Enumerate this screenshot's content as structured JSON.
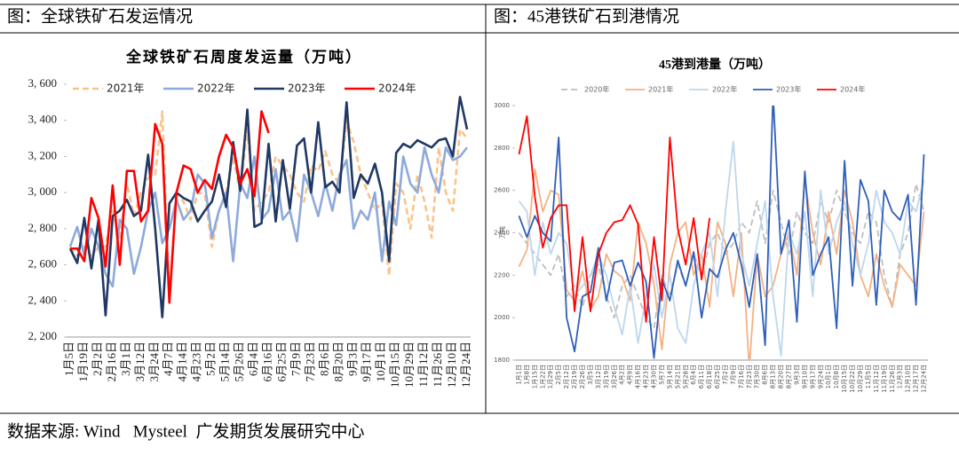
{
  "captions": [
    "图：全球铁矿石发运情况",
    "图：45港铁矿石到港情况"
  ],
  "source": "数据来源: Wind   Mysteel  广发期货发展研究中心",
  "chart_data": [
    {
      "type": "line",
      "title": "全球铁矿石周度发运量（万吨）",
      "categories": [
        "1月5日",
        null,
        "1月19日",
        null,
        "2月2日",
        null,
        "2月16日",
        null,
        "3月1日",
        null,
        "3月12日",
        null,
        "3月24日",
        null,
        "4月7日",
        null,
        "4月14日",
        null,
        "4月23日",
        null,
        "5月2日",
        null,
        "5月14日",
        null,
        "5月26日",
        null,
        "6月4日",
        null,
        "6月16日",
        null,
        "6月25日",
        null,
        "7月9日",
        null,
        "7月23日",
        null,
        "8月6日",
        null,
        "8月20日",
        null,
        "9月3日",
        null,
        "9月17日",
        null,
        "10月1日",
        null,
        "10月15日",
        null,
        "10月29日",
        null,
        "11月12日",
        null,
        "11月26日",
        null,
        "12月10日",
        null,
        "12月24日"
      ],
      "ylim": [
        2200,
        3600
      ],
      "yticks": [
        {
          "value": 2200,
          "label": "2, 200"
        },
        {
          "value": 2400,
          "label": "2, 400"
        },
        {
          "value": 2600,
          "label": "2, 600"
        },
        {
          "value": 2800,
          "label": "2, 800"
        },
        {
          "value": 3000,
          "label": "3, 000"
        },
        {
          "value": 3200,
          "label": "3, 200"
        },
        {
          "value": 3400,
          "label": "3, 400"
        },
        {
          "value": 3600,
          "label": "3, 600"
        }
      ],
      "grid": false,
      "legend": "top-left",
      "series": [
        {
          "name": "2021年",
          "color": "#f9c48c",
          "dashed": true,
          "values": [
            2700,
            2650,
            2700,
            2650,
            2700,
            2700,
            2900,
            2750,
            3050,
            2870,
            3000,
            3080,
            3100,
            3450,
            2400,
            3000,
            2950,
            2850,
            3000,
            2990,
            2700,
            2900,
            3000,
            3200,
            3000,
            3350,
            2900,
            2950,
            3000,
            3200,
            3150,
            3100,
            3000,
            2950,
            3150,
            3120,
            3230,
            3100,
            3050,
            3400,
            3280,
            3100,
            3000,
            2900,
            2950,
            2540,
            3050,
            3000,
            2800,
            3100,
            2950,
            2750,
            3250,
            3000,
            2900,
            3350,
            3300
          ]
        },
        {
          "name": "2022年",
          "color": "#8eaadb",
          "dashed": false,
          "values": [
            2700,
            2810,
            2650,
            2800,
            2700,
            2550,
            2480,
            2850,
            2800,
            2550,
            2700,
            2900,
            3000,
            2720,
            2800,
            2960,
            2850,
            2900,
            3100,
            3050,
            2750,
            2900,
            3000,
            2620,
            3050,
            2970,
            3200,
            2850,
            2900,
            3130,
            2850,
            2900,
            2730,
            3100,
            3000,
            2870,
            3050,
            2900,
            3100,
            3180,
            2800,
            2900,
            2850,
            3000,
            2620,
            2950,
            2820,
            3200,
            3050,
            3000,
            3250,
            3100,
            3000,
            3250,
            3180,
            3200,
            3250
          ]
        },
        {
          "name": "2023年",
          "color": "#1f3864",
          "dashed": false,
          "values": [
            2690,
            2610,
            2860,
            2580,
            2850,
            2320,
            2870,
            2900,
            2960,
            2870,
            2900,
            3210,
            2800,
            2310,
            2940,
            3000,
            2970,
            2950,
            2840,
            2900,
            2950,
            3100,
            2920,
            3280,
            3010,
            3460,
            2810,
            2830,
            3270,
            2840,
            3180,
            2910,
            3260,
            3300,
            3000,
            3390,
            3030,
            3060,
            3000,
            3500,
            2970,
            3100,
            3050,
            3160,
            3000,
            2620,
            3220,
            3270,
            3250,
            3290,
            3270,
            3250,
            3290,
            3300,
            3200,
            3530,
            3350
          ]
        },
        {
          "name": "2024年",
          "color": "#ff0000",
          "dashed": false,
          "values": [
            2690,
            2690,
            2620,
            2970,
            2860,
            2590,
            3040,
            2600,
            3120,
            3120,
            2840,
            2900,
            3380,
            3270,
            2390,
            3000,
            3150,
            3130,
            3000,
            3070,
            3020,
            3200,
            3320,
            3250,
            3050,
            3130,
            2980,
            3450,
            3330,
            null,
            null,
            null,
            null,
            null,
            null,
            null,
            null,
            null,
            null,
            null,
            null,
            null,
            null,
            null,
            null,
            null,
            null,
            null,
            null,
            null,
            null,
            null,
            null,
            null,
            null,
            null,
            null
          ]
        }
      ]
    },
    {
      "type": "line",
      "title": "45港到港量（万吨）",
      "y_label": "万吨",
      "categories": [
        "1月1日",
        "1月8日",
        "1月15日",
        "1月22日",
        "1月29日",
        "2月5日",
        "2月12日",
        "2月19日",
        "2月26日",
        "3月5日",
        "3月12日",
        "3月19日",
        "3月26日",
        "4月2日",
        "4月9日",
        "4月16日",
        "4月23日",
        "4月30日",
        "5月7日",
        "5月14日",
        "5月21日",
        "5月28日",
        "6月4日",
        "6月11日",
        "6月18日",
        "6月25日",
        "7月2日",
        "7月9日",
        "7月16日",
        "7月23日",
        "7月30日",
        "8月6日",
        "8月13日",
        "8月20日",
        "8月27日",
        "9月3日",
        "9月10日",
        "9月17日",
        "9月24日",
        "10月1日",
        "10月8日",
        "10月15日",
        "10月22日",
        "10月29日",
        "11月5日",
        "11月12日",
        "11月19日",
        "11月26日",
        "12月3日",
        "12月10日",
        "12月17日",
        "12月24日"
      ],
      "ylim": [
        1800,
        3000
      ],
      "yticks": [
        1800,
        2000,
        2200,
        2400,
        2600,
        2800,
        3000
      ],
      "grid": false,
      "legend": "top",
      "series": [
        {
          "name": "2020年",
          "color": "#bfbfbf",
          "dashed": true,
          "values": [
            2400,
            2350,
            2300,
            2250,
            2200,
            2300,
            2100,
            2150,
            2050,
            2200,
            2250,
            2100,
            2000,
            2150,
            2200,
            2100,
            2000,
            1950,
            2200,
            2100,
            2250,
            2150,
            2300,
            2200,
            2350,
            2400,
            2300,
            2350,
            2450,
            2400,
            2550,
            2350,
            2600,
            2450,
            2300,
            2500,
            2400,
            2350,
            2550,
            2450,
            2600,
            2500,
            2400,
            2350,
            2500,
            2450,
            2200,
            2050,
            2300,
            2400,
            2630,
            2500
          ]
        },
        {
          "name": "2021年",
          "color": "#f4b183",
          "dashed": false,
          "values": [
            2240,
            2320,
            2700,
            2500,
            2600,
            2580,
            2130,
            2080,
            2220,
            2040,
            2100,
            2300,
            2220,
            2190,
            2080,
            2450,
            2350,
            2160,
            1850,
            2250,
            2400,
            2450,
            2200,
            2300,
            2050,
            2450,
            2350,
            2100,
            2400,
            1760,
            2300,
            2100,
            2150,
            2300,
            2400,
            2200,
            2650,
            2400,
            2250,
            2500,
            2300,
            2600,
            2450,
            2200,
            2100,
            2300,
            2150,
            2050,
            2250,
            2200,
            2150,
            2500
          ]
        },
        {
          "name": "2022年",
          "color": "#bdd7ee",
          "dashed": false,
          "values": [
            2550,
            2500,
            2200,
            2450,
            2300,
            2400,
            2350,
            2100,
            2150,
            2200,
            2300,
            2200,
            2050,
            1920,
            2150,
            1880,
            2100,
            2250,
            2000,
            2200,
            1950,
            1880,
            2150,
            2300,
            2400,
            2100,
            2500,
            2830,
            2300,
            2150,
            2350,
            2550,
            2100,
            1820,
            2400,
            2300,
            2500,
            2100,
            2600,
            2300,
            2450,
            2550,
            2350,
            2200,
            2350,
            2600,
            2450,
            2400,
            2300,
            2550,
            2500,
            2650
          ]
        },
        {
          "name": "2023年",
          "color": "#2f5fb8",
          "dashed": false,
          "values": [
            2480,
            2380,
            2480,
            2400,
            2360,
            2850,
            2000,
            1840,
            2100,
            2120,
            2330,
            2080,
            2260,
            2270,
            2150,
            2260,
            2170,
            1810,
            2180,
            2080,
            2270,
            2150,
            2310,
            2000,
            2230,
            2190,
            2320,
            2400,
            2250,
            2050,
            2300,
            1870,
            3050,
            2300,
            2460,
            1980,
            2690,
            2200,
            2300,
            2380,
            1950,
            2740,
            2150,
            2650,
            2550,
            2060,
            2600,
            2500,
            2460,
            2580,
            2060,
            2770
          ]
        },
        {
          "name": "2024年",
          "color": "#ff0000",
          "dashed": false,
          "values": [
            2770,
            2950,
            2570,
            2330,
            2470,
            2530,
            2530,
            2030,
            2380,
            2030,
            2300,
            2400,
            2450,
            2460,
            2530,
            2440,
            1980,
            2380,
            2080,
            2850,
            2420,
            2250,
            2470,
            2180,
            2470,
            null,
            null,
            null,
            null,
            null,
            null,
            null,
            null,
            null,
            null,
            null,
            null,
            null,
            null,
            null,
            null,
            null,
            null,
            null,
            null,
            null,
            null,
            null,
            null,
            null,
            null,
            null
          ]
        }
      ]
    }
  ]
}
